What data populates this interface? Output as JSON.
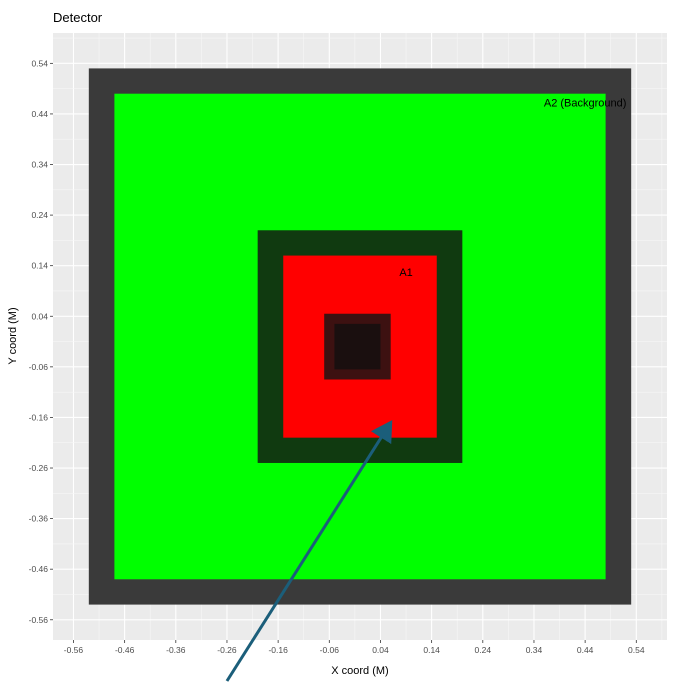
{
  "chart_data": {
    "type": "rect",
    "title": "Detector",
    "xlabel": "X coord (M)",
    "ylabel": "Y coord (M)",
    "xlim": [
      -0.6,
      0.6
    ],
    "ylim": [
      -0.6,
      0.6
    ],
    "x_ticks": [
      -0.56,
      -0.46,
      -0.36,
      -0.26,
      -0.16,
      -0.06,
      0.04,
      0.14,
      0.24,
      0.34,
      0.44,
      0.54
    ],
    "x_tick_labels": [
      "-0.56",
      "-0.46",
      "-0.36",
      "-0.26",
      "-0.16",
      "-0.06",
      "0.04",
      "0.14",
      "0.24",
      "0.34",
      "0.44",
      "0.54"
    ],
    "y_ticks": [
      0.54,
      0.44,
      0.34,
      0.24,
      0.14,
      0.04,
      -0.06,
      -0.16,
      -0.26,
      -0.36,
      -0.46,
      -0.56
    ],
    "y_tick_labels": [
      "0.54",
      "0.44",
      "0.34",
      "0.24",
      "0.14",
      "0.04",
      "-0.06",
      "-0.16",
      "-0.26",
      "-0.36",
      "-0.46",
      "-0.56"
    ],
    "grid": true,
    "rectangles": [
      {
        "id": "outer-border",
        "xmin": -0.53,
        "xmax": 0.53,
        "ymin": -0.53,
        "ymax": 0.53,
        "fill": "#3a3a3a"
      },
      {
        "id": "a2-background",
        "xmin": -0.48,
        "xmax": 0.48,
        "ymin": -0.48,
        "ymax": 0.48,
        "fill": "#00ff00"
      },
      {
        "id": "inner-border",
        "xmin": -0.2,
        "xmax": 0.2,
        "ymin": -0.25,
        "ymax": 0.21,
        "fill": "#103a10"
      },
      {
        "id": "a1",
        "xmin": -0.15,
        "xmax": 0.15,
        "ymin": -0.2,
        "ymax": 0.16,
        "fill": "#ff0000"
      },
      {
        "id": "center-outer",
        "xmin": -0.07,
        "xmax": 0.06,
        "ymin": -0.085,
        "ymax": 0.045,
        "fill": "#3d1111"
      },
      {
        "id": "center-inner",
        "xmin": -0.05,
        "xmax": 0.04,
        "ymin": -0.065,
        "ymax": 0.025,
        "fill": "#1a0f0f"
      }
    ],
    "labels": [
      {
        "text": "A2 (Background)",
        "x": 0.44,
        "y": 0.455
      },
      {
        "text": "A1",
        "x": 0.09,
        "y": 0.12
      }
    ],
    "annotations": [
      {
        "type": "arrow",
        "from": [
          -0.26,
          -0.78
        ],
        "to": [
          0.06,
          -0.17
        ],
        "color": "#1b5e7a"
      }
    ]
  }
}
